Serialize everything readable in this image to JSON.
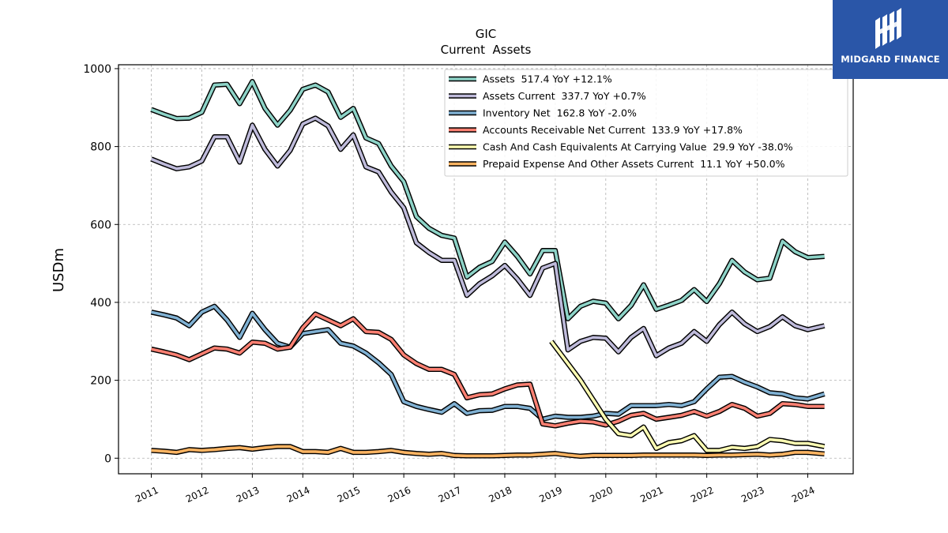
{
  "logo": {
    "text": "MIDGARD FINANCE",
    "bg_color": "#2a56a8"
  },
  "chart_data": {
    "type": "line",
    "title": "GIC",
    "subtitle": "Current  Assets",
    "ylabel": "USDm",
    "xlabel": "",
    "ylim": [
      -40,
      1010
    ],
    "xlim": [
      2010.35,
      2024.9
    ],
    "yticks": [
      0,
      200,
      400,
      600,
      800,
      1000
    ],
    "xticks": [
      "2011",
      "2012",
      "2013",
      "2014",
      "2015",
      "2016",
      "2017",
      "2018",
      "2019",
      "2020",
      "2021",
      "2022",
      "2023",
      "2024"
    ],
    "grid": true,
    "legend_position": "top-right",
    "series": [
      {
        "name": "Assets  517.4 YoY +12.1%",
        "color": "#8dd3c7",
        "points": [
          [
            2011.0,
            895
          ],
          [
            2011.25,
            883
          ],
          [
            2011.5,
            872
          ],
          [
            2011.75,
            873
          ],
          [
            2012.0,
            888
          ],
          [
            2012.25,
            958
          ],
          [
            2012.5,
            960
          ],
          [
            2012.75,
            910
          ],
          [
            2013.0,
            967
          ],
          [
            2013.25,
            898
          ],
          [
            2013.5,
            855
          ],
          [
            2013.75,
            893
          ],
          [
            2014.0,
            947
          ],
          [
            2014.25,
            958
          ],
          [
            2014.5,
            940
          ],
          [
            2014.75,
            875
          ],
          [
            2015.0,
            898
          ],
          [
            2015.25,
            822
          ],
          [
            2015.5,
            808
          ],
          [
            2015.75,
            750
          ],
          [
            2016.0,
            710
          ],
          [
            2016.25,
            620
          ],
          [
            2016.5,
            590
          ],
          [
            2016.75,
            572
          ],
          [
            2017.0,
            565
          ],
          [
            2017.25,
            465
          ],
          [
            2017.5,
            490
          ],
          [
            2017.75,
            505
          ],
          [
            2018.0,
            555
          ],
          [
            2018.25,
            518
          ],
          [
            2018.5,
            473
          ],
          [
            2018.75,
            533
          ],
          [
            2019.0,
            533
          ],
          [
            2019.25,
            358
          ],
          [
            2019.5,
            390
          ],
          [
            2019.75,
            403
          ],
          [
            2020.0,
            398
          ],
          [
            2020.25,
            358
          ],
          [
            2020.5,
            392
          ],
          [
            2020.75,
            445
          ],
          [
            2021.0,
            382
          ],
          [
            2021.25,
            393
          ],
          [
            2021.5,
            405
          ],
          [
            2021.75,
            433
          ],
          [
            2022.0,
            402
          ],
          [
            2022.25,
            448
          ],
          [
            2022.5,
            508
          ],
          [
            2022.75,
            478
          ],
          [
            2023.0,
            458
          ],
          [
            2023.25,
            462
          ],
          [
            2023.5,
            557
          ],
          [
            2023.75,
            530
          ],
          [
            2024.0,
            515
          ],
          [
            2024.33,
            518
          ]
        ]
      },
      {
        "name": "Assets Current  337.7 YoY +0.7%",
        "color": "#bebada",
        "points": [
          [
            2011.0,
            768
          ],
          [
            2011.25,
            755
          ],
          [
            2011.5,
            743
          ],
          [
            2011.75,
            748
          ],
          [
            2012.0,
            763
          ],
          [
            2012.25,
            825
          ],
          [
            2012.5,
            825
          ],
          [
            2012.75,
            760
          ],
          [
            2013.0,
            855
          ],
          [
            2013.25,
            793
          ],
          [
            2013.5,
            750
          ],
          [
            2013.75,
            790
          ],
          [
            2014.0,
            858
          ],
          [
            2014.25,
            873
          ],
          [
            2014.5,
            853
          ],
          [
            2014.75,
            793
          ],
          [
            2015.0,
            830
          ],
          [
            2015.25,
            748
          ],
          [
            2015.5,
            735
          ],
          [
            2015.75,
            683
          ],
          [
            2016.0,
            643
          ],
          [
            2016.25,
            553
          ],
          [
            2016.5,
            528
          ],
          [
            2016.75,
            508
          ],
          [
            2017.0,
            508
          ],
          [
            2017.25,
            418
          ],
          [
            2017.5,
            448
          ],
          [
            2017.75,
            468
          ],
          [
            2018.0,
            495
          ],
          [
            2018.25,
            460
          ],
          [
            2018.5,
            418
          ],
          [
            2018.75,
            488
          ],
          [
            2019.0,
            500
          ],
          [
            2019.25,
            278
          ],
          [
            2019.5,
            300
          ],
          [
            2019.75,
            310
          ],
          [
            2020.0,
            308
          ],
          [
            2020.25,
            273
          ],
          [
            2020.5,
            310
          ],
          [
            2020.75,
            333
          ],
          [
            2021.0,
            263
          ],
          [
            2021.25,
            283
          ],
          [
            2021.5,
            295
          ],
          [
            2021.75,
            325
          ],
          [
            2022.0,
            300
          ],
          [
            2022.25,
            343
          ],
          [
            2022.5,
            375
          ],
          [
            2022.75,
            345
          ],
          [
            2023.0,
            325
          ],
          [
            2023.25,
            338
          ],
          [
            2023.5,
            363
          ],
          [
            2023.75,
            340
          ],
          [
            2024.0,
            330
          ],
          [
            2024.33,
            340
          ]
        ]
      },
      {
        "name": "Inventory Net  162.8 YoY -2.0%",
        "color": "#80b1d3",
        "points": [
          [
            2011.0,
            375
          ],
          [
            2011.25,
            368
          ],
          [
            2011.5,
            360
          ],
          [
            2011.75,
            340
          ],
          [
            2012.0,
            375
          ],
          [
            2012.25,
            390
          ],
          [
            2012.5,
            355
          ],
          [
            2012.75,
            310
          ],
          [
            2013.0,
            372
          ],
          [
            2013.25,
            330
          ],
          [
            2013.5,
            295
          ],
          [
            2013.75,
            285
          ],
          [
            2014.0,
            320
          ],
          [
            2014.25,
            325
          ],
          [
            2014.5,
            330
          ],
          [
            2014.75,
            295
          ],
          [
            2015.0,
            288
          ],
          [
            2015.25,
            270
          ],
          [
            2015.5,
            245
          ],
          [
            2015.75,
            215
          ],
          [
            2016.0,
            145
          ],
          [
            2016.25,
            133
          ],
          [
            2016.5,
            125
          ],
          [
            2016.75,
            118
          ],
          [
            2017.0,
            140
          ],
          [
            2017.25,
            115
          ],
          [
            2017.5,
            122
          ],
          [
            2017.75,
            123
          ],
          [
            2018.0,
            133
          ],
          [
            2018.25,
            133
          ],
          [
            2018.5,
            128
          ],
          [
            2018.75,
            100
          ],
          [
            2019.0,
            108
          ],
          [
            2019.25,
            105
          ],
          [
            2019.5,
            105
          ],
          [
            2019.75,
            108
          ],
          [
            2020.0,
            115
          ],
          [
            2020.25,
            113
          ],
          [
            2020.5,
            135
          ],
          [
            2020.75,
            135
          ],
          [
            2021.0,
            135
          ],
          [
            2021.25,
            138
          ],
          [
            2021.5,
            135
          ],
          [
            2021.75,
            145
          ],
          [
            2022.0,
            178
          ],
          [
            2022.25,
            208
          ],
          [
            2022.5,
            210
          ],
          [
            2022.75,
            195
          ],
          [
            2023.0,
            183
          ],
          [
            2023.25,
            168
          ],
          [
            2023.5,
            165
          ],
          [
            2023.75,
            155
          ],
          [
            2024.0,
            152
          ],
          [
            2024.33,
            165
          ]
        ]
      },
      {
        "name": "Accounts Receivable Net Current  133.9 YoY +17.8%",
        "color": "#fb8072",
        "points": [
          [
            2011.0,
            280
          ],
          [
            2011.25,
            273
          ],
          [
            2011.5,
            265
          ],
          [
            2011.75,
            253
          ],
          [
            2012.0,
            268
          ],
          [
            2012.25,
            283
          ],
          [
            2012.5,
            280
          ],
          [
            2012.75,
            270
          ],
          [
            2013.0,
            298
          ],
          [
            2013.25,
            295
          ],
          [
            2013.5,
            280
          ],
          [
            2013.75,
            285
          ],
          [
            2014.0,
            335
          ],
          [
            2014.25,
            370
          ],
          [
            2014.5,
            355
          ],
          [
            2014.75,
            340
          ],
          [
            2015.0,
            358
          ],
          [
            2015.25,
            325
          ],
          [
            2015.5,
            323
          ],
          [
            2015.75,
            305
          ],
          [
            2016.0,
            265
          ],
          [
            2016.25,
            243
          ],
          [
            2016.5,
            228
          ],
          [
            2016.75,
            228
          ],
          [
            2017.0,
            215
          ],
          [
            2017.25,
            155
          ],
          [
            2017.5,
            163
          ],
          [
            2017.75,
            165
          ],
          [
            2018.0,
            178
          ],
          [
            2018.25,
            188
          ],
          [
            2018.5,
            190
          ],
          [
            2018.75,
            88
          ],
          [
            2019.0,
            83
          ],
          [
            2019.25,
            90
          ],
          [
            2019.5,
            95
          ],
          [
            2019.75,
            93
          ],
          [
            2020.0,
            85
          ],
          [
            2020.25,
            95
          ],
          [
            2020.5,
            110
          ],
          [
            2020.75,
            115
          ],
          [
            2021.0,
            100
          ],
          [
            2021.25,
            105
          ],
          [
            2021.5,
            110
          ],
          [
            2021.75,
            120
          ],
          [
            2022.0,
            108
          ],
          [
            2022.25,
            120
          ],
          [
            2022.5,
            138
          ],
          [
            2022.75,
            128
          ],
          [
            2023.0,
            108
          ],
          [
            2023.25,
            115
          ],
          [
            2023.5,
            140
          ],
          [
            2023.75,
            138
          ],
          [
            2024.0,
            133
          ],
          [
            2024.33,
            133
          ]
        ]
      },
      {
        "name": "Cash And Cash Equivalents At Carrying Value  29.9 YoY -38.0%",
        "color": "#ffffb3",
        "points": [
          [
            2018.92,
            300
          ],
          [
            2019.5,
            200
          ],
          [
            2020.0,
            100
          ],
          [
            2020.25,
            63
          ],
          [
            2020.5,
            58
          ],
          [
            2020.75,
            80
          ],
          [
            2021.0,
            25
          ],
          [
            2021.25,
            40
          ],
          [
            2021.5,
            45
          ],
          [
            2021.75,
            58
          ],
          [
            2022.0,
            20
          ],
          [
            2022.25,
            20
          ],
          [
            2022.5,
            28
          ],
          [
            2022.75,
            25
          ],
          [
            2023.0,
            30
          ],
          [
            2023.25,
            48
          ],
          [
            2023.5,
            45
          ],
          [
            2023.75,
            38
          ],
          [
            2024.0,
            38
          ],
          [
            2024.33,
            30
          ]
        ]
      },
      {
        "name": "Prepaid Expense And Other Assets Current  11.1 YoY +50.0%",
        "color": "#fdb462",
        "points": [
          [
            2011.0,
            20
          ],
          [
            2011.25,
            18
          ],
          [
            2011.5,
            15
          ],
          [
            2011.75,
            22
          ],
          [
            2012.0,
            20
          ],
          [
            2012.25,
            22
          ],
          [
            2012.5,
            25
          ],
          [
            2012.75,
            27
          ],
          [
            2013.0,
            23
          ],
          [
            2013.25,
            27
          ],
          [
            2013.5,
            30
          ],
          [
            2013.75,
            30
          ],
          [
            2014.0,
            17
          ],
          [
            2014.25,
            17
          ],
          [
            2014.5,
            15
          ],
          [
            2014.75,
            25
          ],
          [
            2015.0,
            15
          ],
          [
            2015.25,
            15
          ],
          [
            2015.5,
            17
          ],
          [
            2015.75,
            20
          ],
          [
            2016.0,
            15
          ],
          [
            2016.25,
            12
          ],
          [
            2016.5,
            10
          ],
          [
            2016.75,
            12
          ],
          [
            2017.0,
            7
          ],
          [
            2017.25,
            6
          ],
          [
            2017.5,
            6
          ],
          [
            2017.75,
            6
          ],
          [
            2018.0,
            7
          ],
          [
            2018.25,
            8
          ],
          [
            2018.5,
            8
          ],
          [
            2018.75,
            10
          ],
          [
            2019.0,
            12
          ],
          [
            2019.25,
            8
          ],
          [
            2019.5,
            5
          ],
          [
            2019.75,
            7
          ],
          [
            2020.0,
            7
          ],
          [
            2020.25,
            7
          ],
          [
            2020.5,
            7
          ],
          [
            2020.75,
            8
          ],
          [
            2021.0,
            8
          ],
          [
            2021.25,
            8
          ],
          [
            2021.5,
            8
          ],
          [
            2021.75,
            8
          ],
          [
            2022.0,
            7
          ],
          [
            2022.25,
            8
          ],
          [
            2022.5,
            8
          ],
          [
            2022.75,
            9
          ],
          [
            2023.0,
            10
          ],
          [
            2023.25,
            8
          ],
          [
            2023.5,
            10
          ],
          [
            2023.75,
            15
          ],
          [
            2024.0,
            15
          ],
          [
            2024.33,
            11
          ]
        ]
      }
    ]
  }
}
